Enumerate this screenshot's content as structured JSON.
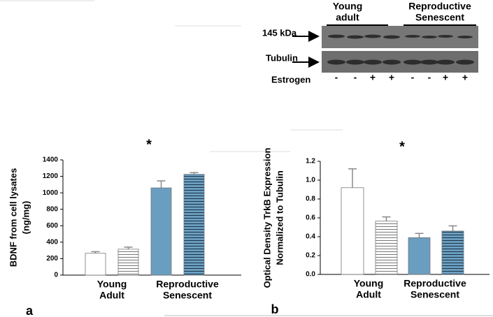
{
  "blot": {
    "group_labels": [
      [
        "Young",
        "adult"
      ],
      [
        "Reproductive",
        "Senescent"
      ]
    ],
    "band_labels": [
      "145 kDa",
      "Tubulin"
    ],
    "treatment_label": "Estrogen",
    "treatment": [
      "-",
      "-",
      "+",
      "+",
      "-",
      "-",
      "+",
      "+"
    ]
  },
  "chart_data": [
    {
      "type": "bar",
      "panel": "a",
      "annotation": "*",
      "y_label": [
        "BDNF from cell lysates",
        "(ng/mg)"
      ],
      "groups": [
        [
          "Young",
          "Adult"
        ],
        [
          "Reproductive",
          "Senescent"
        ]
      ],
      "values": [
        265,
        315,
        1060,
        1225
      ],
      "errors": [
        20,
        25,
        85,
        20
      ],
      "colors": [
        "#ffffff",
        "#ffffff",
        "#6a9ec0",
        "#6a9ec0"
      ],
      "hatch": [
        false,
        true,
        false,
        true
      ],
      "ylim": [
        0,
        1400
      ],
      "yticks": [
        0,
        200,
        400,
        600,
        800,
        1000,
        1200,
        1400
      ]
    },
    {
      "type": "bar",
      "panel": "b",
      "annotation": "*",
      "y_label": [
        "Optical Density TrkB Expression",
        "Normalized to Tubulin"
      ],
      "groups": [
        [
          "Young",
          "Adult"
        ],
        [
          "Reproductive",
          "Senescent"
        ]
      ],
      "values": [
        0.92,
        0.565,
        0.39,
        0.46
      ],
      "errors": [
        0.2,
        0.045,
        0.045,
        0.055
      ],
      "colors": [
        "#ffffff",
        "#ffffff",
        "#6a9ec0",
        "#6a9ec0"
      ],
      "hatch": [
        false,
        true,
        false,
        true
      ],
      "ylim": [
        0,
        1.2
      ],
      "yticks": [
        {
          "value": 0,
          "label": "0.0"
        },
        0.2,
        0.4,
        0.6,
        0.8,
        {
          "value": 1,
          "label": "1.0"
        },
        1.2
      ]
    }
  ]
}
